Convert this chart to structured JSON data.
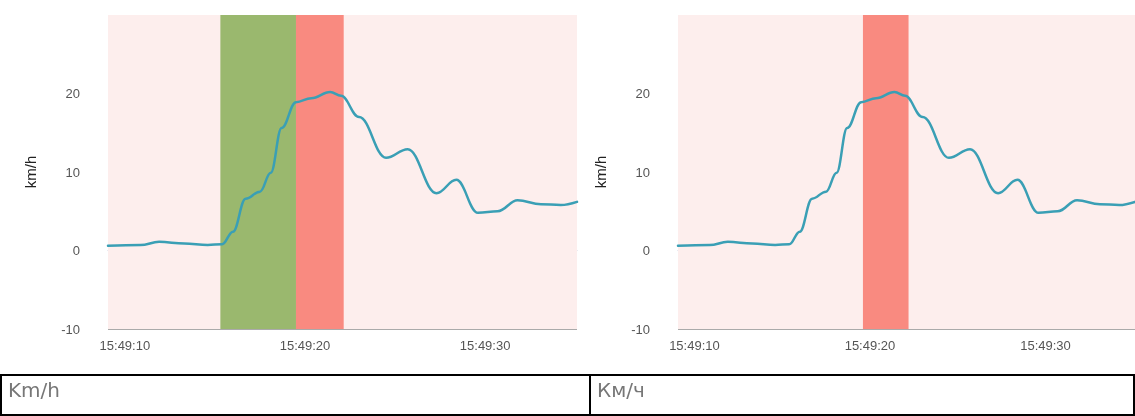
{
  "chart_data": [
    {
      "type": "line",
      "ylabel": "km/h",
      "annotations": [
        "Km/h"
      ],
      "x": [
        15.819184,
        15.819686,
        15.819972,
        15.820361,
        15.820722,
        15.820944,
        15.821111,
        15.821306,
        15.821528,
        15.821694,
        15.821861,
        15.822083,
        15.822319,
        15.822611,
        15.822778,
        15.823056,
        15.823472,
        15.823806,
        15.82425,
        15.824556,
        15.824889,
        15.825194,
        15.8255,
        15.825861,
        15.826167,
        15.826417
      ],
      "series": [
        {
          "color": "#3a9fb5",
          "values": [
            0.6,
            0.7,
            1.1,
            0.9,
            0.7,
            0.8,
            2.4,
            6.6,
            7.5,
            9.9,
            15.6,
            18.9,
            19.4,
            20.2,
            19.7,
            17,
            11.8,
            12.9,
            7.3,
            9,
            4.8,
            5,
            6.4,
            5.9,
            5.8,
            6.2
          ]
        }
      ],
      "xlim": [
        15.819184,
        15.826417
      ],
      "xticks": [
        {
          "value": 15.819444,
          "label": "15:49:10"
        },
        {
          "value": 15.822222,
          "label": "15:49:20"
        },
        {
          "value": 15.825,
          "label": "15:49:30"
        }
      ],
      "ylim": [
        -10,
        30
      ],
      "yticks": [
        -10,
        0,
        10,
        20
      ],
      "bands": [
        {
          "axis": "y",
          "from": -10,
          "to": 30,
          "color": "#fdeeed"
        },
        {
          "axis": "x",
          "from": 15.820917,
          "to": 15.822083,
          "color": "#9ab86e"
        },
        {
          "axis": "x",
          "from": 15.822083,
          "to": 15.822819,
          "color": "#f98a80"
        }
      ],
      "grid": "y",
      "marker": "none"
    },
    {
      "type": "line",
      "ylabel": "km/h",
      "annotations": [
        "Км/ч"
      ],
      "x": [
        15.819184,
        15.819686,
        15.819972,
        15.820361,
        15.820722,
        15.820944,
        15.821111,
        15.821306,
        15.821528,
        15.821694,
        15.821861,
        15.822083,
        15.822319,
        15.822611,
        15.822778,
        15.823056,
        15.823472,
        15.823806,
        15.82425,
        15.824556,
        15.824889,
        15.825194,
        15.8255,
        15.825861,
        15.826167,
        15.826417
      ],
      "series": [
        {
          "color": "#3a9fb5",
          "values": [
            0.6,
            0.7,
            1.1,
            0.9,
            0.7,
            0.8,
            2.4,
            6.6,
            7.5,
            9.9,
            15.6,
            18.9,
            19.4,
            20.2,
            19.7,
            17,
            11.8,
            12.9,
            7.3,
            9,
            4.8,
            5,
            6.4,
            5.9,
            5.8,
            6.2
          ]
        }
      ],
      "xlim": [
        15.819184,
        15.826417
      ],
      "xticks": [
        {
          "value": 15.819444,
          "label": "15:49:10"
        },
        {
          "value": 15.822222,
          "label": "15:49:20"
        },
        {
          "value": 15.825,
          "label": "15:49:30"
        }
      ],
      "ylim": [
        -10,
        30
      ],
      "yticks": [
        -10,
        0,
        10,
        20
      ],
      "bands": [
        {
          "axis": "y",
          "from": -10,
          "to": 30,
          "color": "#fdeeed"
        },
        {
          "axis": "x",
          "from": 15.822111,
          "to": 15.822833,
          "color": "#f98a80"
        }
      ],
      "grid": "y",
      "marker": "none"
    }
  ]
}
